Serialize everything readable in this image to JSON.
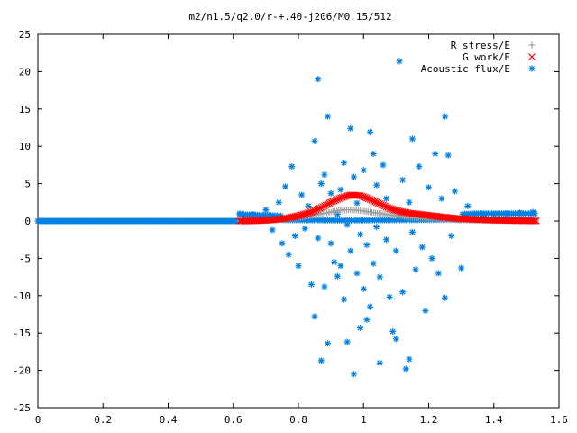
{
  "chart_data": {
    "type": "scatter",
    "title": "m2/n1.5/q2.0/r-+.40-j206/M0.15/512",
    "xlabel": "",
    "ylabel": "",
    "xlim": [
      0,
      1.6
    ],
    "ylim": [
      -25,
      25
    ],
    "x_ticks": [
      "0",
      "0.2",
      "0.4",
      "0.6",
      "0.8",
      "1",
      "1.2",
      "1.4",
      "1.6"
    ],
    "y_ticks": [
      "25",
      "20",
      "15",
      "10",
      "5",
      "0",
      "-5",
      "-10",
      "-15",
      "-20",
      "-25"
    ],
    "legend_position": "top-right",
    "grid": false,
    "series": [
      {
        "name": "R stress/E",
        "color": "#a0a0a0",
        "marker": "plus",
        "x_range": [
          0.61,
          1.53
        ],
        "note_shape": "smooth hump",
        "points": [
          [
            0.62,
            0
          ],
          [
            0.7,
            0.05
          ],
          [
            0.75,
            0.2
          ],
          [
            0.8,
            0.45
          ],
          [
            0.85,
            0.8
          ],
          [
            0.9,
            1.2
          ],
          [
            0.93,
            1.45
          ],
          [
            0.96,
            1.5
          ],
          [
            0.99,
            1.4
          ],
          [
            1.02,
            1.2
          ],
          [
            1.06,
            0.95
          ],
          [
            1.1,
            0.7
          ],
          [
            1.15,
            0.45
          ],
          [
            1.2,
            0.3
          ],
          [
            1.25,
            0.18
          ],
          [
            1.3,
            0.1
          ],
          [
            1.38,
            0.05
          ],
          [
            1.45,
            0.02
          ],
          [
            1.53,
            0
          ]
        ]
      },
      {
        "name": "G work/E",
        "color": "#ff0000",
        "marker": "cross",
        "points": [
          [
            0.62,
            0
          ],
          [
            0.68,
            0.05
          ],
          [
            0.72,
            0.15
          ],
          [
            0.76,
            0.35
          ],
          [
            0.8,
            0.7
          ],
          [
            0.84,
            1.2
          ],
          [
            0.87,
            1.8
          ],
          [
            0.9,
            2.5
          ],
          [
            0.93,
            3.1
          ],
          [
            0.96,
            3.5
          ],
          [
            0.99,
            3.4
          ],
          [
            1.02,
            2.9
          ],
          [
            1.05,
            2.3
          ],
          [
            1.08,
            1.7
          ],
          [
            1.11,
            1.3
          ],
          [
            1.14,
            1.05
          ],
          [
            1.18,
            0.85
          ],
          [
            1.22,
            0.65
          ],
          [
            1.26,
            0.45
          ],
          [
            1.3,
            0.3
          ],
          [
            1.35,
            0.2
          ],
          [
            1.4,
            0.12
          ],
          [
            1.46,
            0.06
          ],
          [
            1.53,
            0.02
          ]
        ]
      },
      {
        "name": "Acoustic flux/E",
        "color": "#0080e0",
        "marker": "star",
        "points": [
          [
            0.62,
            1.0
          ],
          [
            0.66,
            0.9
          ],
          [
            0.7,
            1.5
          ],
          [
            0.72,
            -1.2
          ],
          [
            0.74,
            2.5
          ],
          [
            0.75,
            -3.0
          ],
          [
            0.76,
            4.6
          ],
          [
            0.77,
            -4.5
          ],
          [
            0.78,
            7.3
          ],
          [
            0.79,
            -2.0
          ],
          [
            0.8,
            -6.0
          ],
          [
            0.81,
            3.5
          ],
          [
            0.82,
            -1.0
          ],
          [
            0.83,
            2.0
          ],
          [
            0.84,
            -8.5
          ],
          [
            0.85,
            10.7
          ],
          [
            0.85,
            -12.8
          ],
          [
            0.86,
            19.0
          ],
          [
            0.86,
            -2.3
          ],
          [
            0.87,
            5.0
          ],
          [
            0.87,
            -18.7
          ],
          [
            0.88,
            6.2
          ],
          [
            0.88,
            -8.8
          ],
          [
            0.89,
            -16.4
          ],
          [
            0.89,
            14.0
          ],
          [
            0.9,
            -3.0
          ],
          [
            0.9,
            3.7
          ],
          [
            0.91,
            -5.5
          ],
          [
            0.92,
            -7.4
          ],
          [
            0.92,
            0.9
          ],
          [
            0.93,
            -6.0
          ],
          [
            0.93,
            4.2
          ],
          [
            0.94,
            -10.5
          ],
          [
            0.94,
            7.8
          ],
          [
            0.95,
            -16.2
          ],
          [
            0.95,
            -0.5
          ],
          [
            0.96,
            12.4
          ],
          [
            0.96,
            -4.0
          ],
          [
            0.97,
            -20.5
          ],
          [
            0.97,
            5.9
          ],
          [
            0.98,
            -7.0
          ],
          [
            0.98,
            2.4
          ],
          [
            0.99,
            -1.8
          ],
          [
            0.99,
            -14.3
          ],
          [
            1.0,
            -9.1
          ],
          [
            1.0,
            6.8
          ],
          [
            1.01,
            -13.2
          ],
          [
            1.01,
            -3.2
          ],
          [
            1.02,
            11.9
          ],
          [
            1.02,
            -11.5
          ],
          [
            1.03,
            9.0
          ],
          [
            1.03,
            -5.7
          ],
          [
            1.04,
            -0.8
          ],
          [
            1.04,
            4.8
          ],
          [
            1.05,
            -19.0
          ],
          [
            1.05,
            -7.5
          ],
          [
            1.06,
            7.5
          ],
          [
            1.07,
            -2.5
          ],
          [
            1.07,
            3.0
          ],
          [
            1.08,
            -10.2
          ],
          [
            1.09,
            -14.8
          ],
          [
            1.1,
            -4.0
          ],
          [
            1.1,
            -15.8
          ],
          [
            1.11,
            21.4
          ],
          [
            1.11,
            0.5
          ],
          [
            1.12,
            -9.5
          ],
          [
            1.12,
            5.5
          ],
          [
            1.13,
            -19.8
          ],
          [
            1.14,
            -18.5
          ],
          [
            1.14,
            2.5
          ],
          [
            1.15,
            11.0
          ],
          [
            1.15,
            -1.5
          ],
          [
            1.16,
            -6.5
          ],
          [
            1.17,
            7.3
          ],
          [
            1.18,
            -3.5
          ],
          [
            1.19,
            -12.0
          ],
          [
            1.2,
            4.5
          ],
          [
            1.21,
            -5.0
          ],
          [
            1.22,
            9.0
          ],
          [
            1.23,
            -7.0
          ],
          [
            1.24,
            3.0
          ],
          [
            1.25,
            14.0
          ],
          [
            1.25,
            -10.3
          ],
          [
            1.26,
            8.8
          ],
          [
            1.27,
            -2.0
          ],
          [
            1.28,
            4.0
          ],
          [
            1.3,
            -6.3
          ],
          [
            1.32,
            2.0
          ],
          [
            1.34,
            1.0
          ],
          [
            1.37,
            0.8
          ],
          [
            1.4,
            0.9
          ],
          [
            1.44,
            1.0
          ],
          [
            1.48,
            1.1
          ],
          [
            1.52,
            1.2
          ]
        ]
      }
    ]
  }
}
